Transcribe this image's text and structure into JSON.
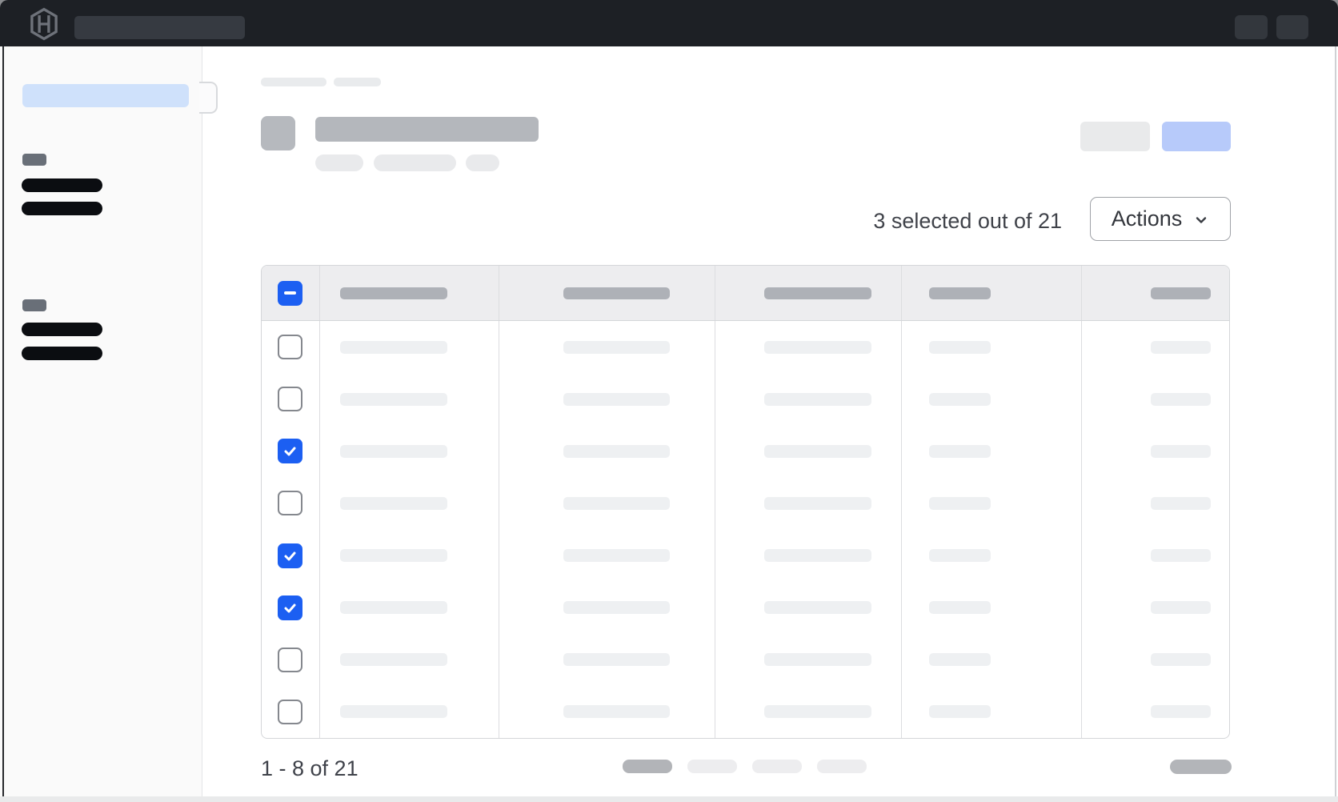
{
  "navbar": {
    "logo": "hashicorp-logo",
    "placeholders": {
      "search": "skeleton",
      "buttons": 2
    }
  },
  "toolbar": {
    "selection_summary": "3 selected out of 21",
    "actions_label": "Actions",
    "actions_icon": "chevron-down-icon"
  },
  "table": {
    "select_all_state": "indeterminate",
    "selected_count": 3,
    "total_count": 21,
    "column_count": 5,
    "rows": [
      {
        "selected": false
      },
      {
        "selected": false
      },
      {
        "selected": true
      },
      {
        "selected": false
      },
      {
        "selected": true
      },
      {
        "selected": true
      },
      {
        "selected": false
      },
      {
        "selected": false
      }
    ]
  },
  "pagination": {
    "range_label": "1 - 8 of 21",
    "page_placeholder_count": 4,
    "active_page_index": 0
  },
  "colors": {
    "accent_blue": "#1c5ff2",
    "sidebar_active_blue": "#cfe1fb",
    "primary_button_skeleton_blue": "#b7cafa",
    "navbar_bg": "#1d2025"
  }
}
